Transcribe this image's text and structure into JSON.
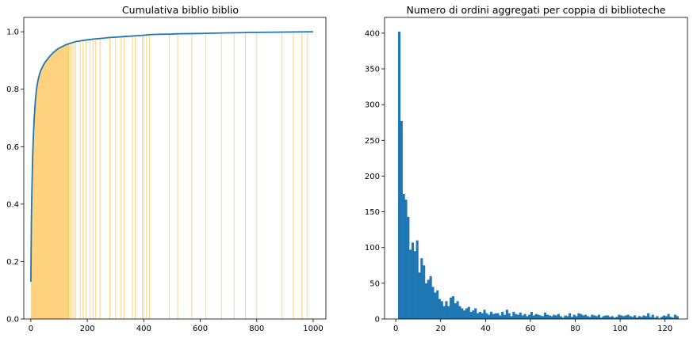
{
  "chart_data": [
    {
      "type": "line",
      "title": "Cumulativa biblio biblio",
      "xlabel": "",
      "ylabel": "",
      "xlim": [
        -25,
        1045
      ],
      "ylim": [
        0,
        1.05
      ],
      "xticks": [
        0,
        200,
        400,
        600,
        800,
        1000
      ],
      "yticks": [
        0.0,
        0.2,
        0.4,
        0.6,
        0.8,
        1.0
      ],
      "xtick_labels": [
        "0",
        "200",
        "400",
        "600",
        "800",
        "1000"
      ],
      "ytick_labels": [
        "0.0",
        "0.2",
        "0.4",
        "0.6",
        "0.8",
        "1.0"
      ],
      "grid": false,
      "colors": {
        "line": "#1f77b4",
        "fill": "#ffa500"
      },
      "series": [
        {
          "x": [
            0,
            2,
            4,
            6,
            8,
            10,
            12,
            14,
            16,
            18,
            20,
            25,
            30,
            35,
            40,
            45,
            50,
            55,
            60,
            65,
            70,
            75,
            80,
            85,
            90,
            95,
            100,
            110,
            120,
            130,
            140,
            150,
            160,
            180,
            200,
            225,
            250,
            280,
            310,
            340,
            370,
            400,
            420,
            450,
            500,
            520,
            600,
            680,
            750,
            780,
            800,
            900,
            1000
          ],
          "y": [
            0.13,
            0.35,
            0.46,
            0.55,
            0.61,
            0.66,
            0.7,
            0.73,
            0.76,
            0.78,
            0.8,
            0.83,
            0.85,
            0.865,
            0.875,
            0.885,
            0.893,
            0.9,
            0.906,
            0.912,
            0.918,
            0.923,
            0.928,
            0.932,
            0.936,
            0.94,
            0.943,
            0.948,
            0.953,
            0.957,
            0.96,
            0.963,
            0.966,
            0.969,
            0.972,
            0.975,
            0.977,
            0.98,
            0.982,
            0.984,
            0.986,
            0.988,
            0.99,
            0.991,
            0.992,
            0.993,
            0.994,
            0.996,
            0.997,
            0.998,
            0.998,
            0.999,
            1.0
          ]
        }
      ],
      "fill_lines_x": [
        135,
        140,
        146,
        152,
        158,
        175,
        185,
        195,
        210,
        220,
        230,
        245,
        280,
        300,
        320,
        330,
        360,
        370,
        395,
        400,
        410,
        420,
        490,
        520,
        570,
        620,
        675,
        720,
        760,
        800,
        890,
        930,
        960,
        980
      ]
    },
    {
      "type": "bar",
      "title": "Numero di ordini aggregati per coppia di biblioteche",
      "xlabel": "",
      "ylabel": "",
      "xlim": [
        -5,
        130
      ],
      "ylim": [
        0,
        422
      ],
      "xticks": [
        0,
        20,
        40,
        60,
        80,
        100,
        120
      ],
      "yticks": [
        0,
        50,
        100,
        150,
        200,
        250,
        300,
        350,
        400
      ],
      "xtick_labels": [
        "0",
        "20",
        "40",
        "60",
        "80",
        "100",
        "120"
      ],
      "ytick_labels": [
        "0",
        "50",
        "100",
        "150",
        "200",
        "250",
        "300",
        "350",
        "400"
      ],
      "grid": false,
      "colors": {
        "bar": "#1f77b4"
      },
      "bin_start": 1,
      "bin_width": 1,
      "values": [
        402,
        277,
        175,
        167,
        143,
        97,
        107,
        95,
        110,
        65,
        85,
        75,
        50,
        55,
        60,
        45,
        37,
        40,
        28,
        25,
        18,
        25,
        18,
        30,
        32,
        22,
        25,
        18,
        15,
        12,
        15,
        17,
        10,
        12,
        15,
        8,
        10,
        8,
        13,
        8,
        6,
        10,
        7,
        8,
        8,
        5,
        10,
        6,
        13,
        8,
        4,
        10,
        7,
        6,
        9,
        5,
        7,
        4,
        6,
        10,
        5,
        7,
        6,
        5,
        4,
        9,
        6,
        5,
        4,
        6,
        5,
        7,
        4,
        2,
        5,
        4,
        8,
        3,
        6,
        4,
        8,
        7,
        5,
        6,
        4,
        3,
        6,
        5,
        4,
        6,
        2,
        4,
        5,
        5,
        3,
        4,
        2,
        3,
        6,
        5,
        4,
        5,
        6,
        4,
        3,
        5,
        2,
        4,
        3,
        5,
        4,
        8,
        3,
        6,
        2,
        4,
        1,
        3,
        5,
        4,
        7,
        3,
        2,
        6,
        4
      ]
    }
  ]
}
